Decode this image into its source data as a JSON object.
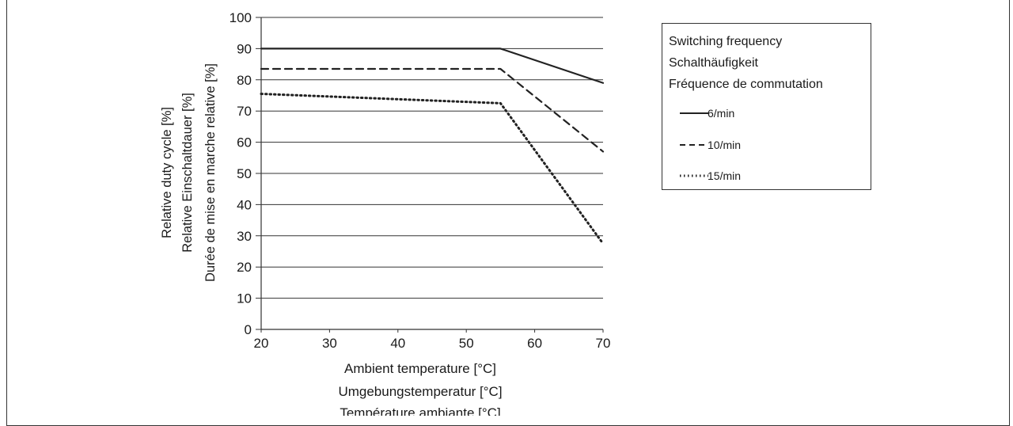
{
  "chart_data": {
    "type": "line",
    "x_range": [
      20,
      70
    ],
    "y_range": [
      0,
      100
    ],
    "x_ticks": [
      "20",
      "30",
      "40",
      "50",
      "60",
      "70"
    ],
    "y_ticks": [
      "0",
      "10",
      "20",
      "30",
      "40",
      "50",
      "60",
      "70",
      "80",
      "90",
      "100"
    ],
    "grid": "horizontal",
    "legend_position": "right",
    "xlabel": [
      "Ambient temperature [°C]",
      "Umgebungstemperatur [°C]",
      "Température ambiante [°C]"
    ],
    "ylabel": [
      "Relative duty cycle [%]",
      "Relative Einschaltdauer [%]",
      "Durée de mise en marche relative [%]"
    ],
    "legend_title": [
      "Switching frequency",
      "Schalthäufigkeit",
      "Fréquence de commutation"
    ],
    "series": [
      {
        "name": "6/min",
        "style": "solid",
        "x": [
          20,
          55,
          70
        ],
        "y": [
          90,
          90,
          79
        ]
      },
      {
        "name": "10/min",
        "style": "dashed",
        "x": [
          20,
          55,
          70
        ],
        "y": [
          83.5,
          83.5,
          57
        ]
      },
      {
        "name": "15/min",
        "style": "dotted",
        "x": [
          20,
          55,
          70
        ],
        "y": [
          75.5,
          72.5,
          27.5
        ]
      }
    ],
    "line_color": "#222222"
  }
}
